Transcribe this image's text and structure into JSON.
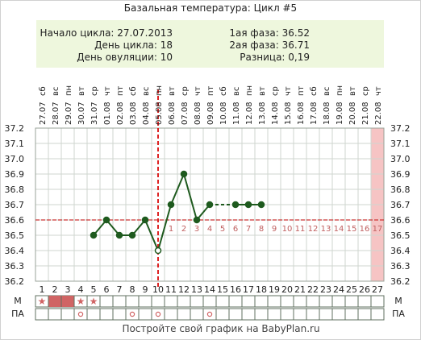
{
  "title": "Базальная температура: Цикл #5",
  "info": {
    "cycle_start": "Начало цикла: 27.07.2013",
    "cycle_day": "День цикла: 18",
    "ovulation_day": "День овуляции: 10",
    "phase1": "1ая фаза: 36.52",
    "phase2": "2ая фаза: 36.71",
    "difference": "Разница: 0,19"
  },
  "footer": "Постройте свой график на BabyPlan.ru",
  "row_labels": {
    "m": "М",
    "pa": "ПА"
  },
  "colors": {
    "line": "#1e5a1e",
    "coverline": "#cc3333",
    "ovulation_line": "#dd2222",
    "post_ovulation_numbers": "#c06060",
    "last_day_band": "#f6c4c4",
    "info_box": "#eef7dd",
    "grid": "#cfd6cf",
    "m_fill": "#d06464"
  },
  "chart_data": {
    "type": "line",
    "title": "Базальная температура: Цикл #5",
    "x": [
      1,
      2,
      3,
      4,
      5,
      6,
      7,
      8,
      9,
      10,
      11,
      12,
      13,
      14,
      15,
      16,
      17,
      18,
      19,
      20,
      21,
      22,
      23,
      24,
      25,
      26,
      27
    ],
    "dates": [
      "27.07",
      "28.07",
      "29.07",
      "30.07",
      "31.07",
      "01.08",
      "02.08",
      "03.08",
      "04.08",
      "05.08",
      "06.08",
      "07.08",
      "08.08",
      "09.08",
      "10.08",
      "11.08",
      "12.08",
      "13.08",
      "14.08",
      "15.08",
      "16.08",
      "17.08",
      "18.08",
      "19.08",
      "20.08",
      "21.08",
      "22.08"
    ],
    "weekdays": [
      "сб",
      "вс",
      "пн",
      "вт",
      "ср",
      "чт",
      "пт",
      "сб",
      "вс",
      "пн",
      "вт",
      "ср",
      "чт",
      "пт",
      "сб",
      "вс",
      "пн",
      "вт",
      "ср",
      "чт",
      "пт",
      "сб",
      "вс",
      "пн",
      "вт",
      "ср",
      "чт"
    ],
    "series": [
      {
        "values": [
          null,
          null,
          null,
          null,
          36.5,
          36.6,
          36.5,
          36.5,
          36.6,
          36.4,
          36.7,
          36.9,
          36.6,
          36.7,
          null,
          36.7,
          36.7,
          36.7,
          null,
          null,
          null,
          null,
          null,
          null,
          null,
          null,
          null
        ]
      }
    ],
    "dashed_gap": [
      14,
      16
    ],
    "coverline": 36.6,
    "ovulation_day": 10,
    "post_ovulation_day_numbers": [
      "1",
      "2",
      "3",
      "4",
      "5",
      "6",
      "7",
      "8",
      "9",
      "10",
      "11",
      "12",
      "13",
      "14",
      "15",
      "16",
      "17"
    ],
    "yticks": [
      "36.2",
      "36.3",
      "36.4",
      "36.5",
      "36.6",
      "36.7",
      "36.8",
      "36.9",
      "37.0",
      "37.1",
      "37.2"
    ],
    "ylim": [
      36.2,
      37.2
    ],
    "grid": true,
    "last_day_highlight": 27,
    "m_row": {
      "filled": [
        2,
        3
      ],
      "stars": [
        1,
        4,
        5
      ]
    },
    "pa_row": {
      "circles": [
        4,
        8,
        10,
        14
      ]
    }
  }
}
